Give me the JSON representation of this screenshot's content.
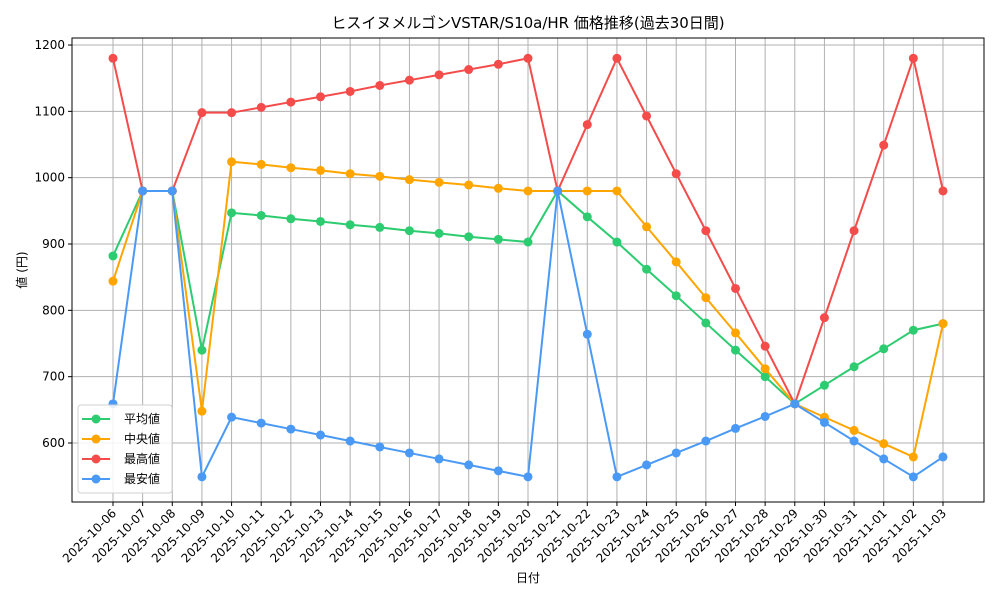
{
  "chart_data": {
    "type": "line",
    "title": "ヒスイヌメルゴンVSTAR/S10a/HR 価格推移(過去30日間)",
    "xlabel": "日付",
    "ylabel": "値 (円)",
    "ylim": [
      520,
      1210
    ],
    "yticks": [
      600,
      700,
      800,
      900,
      1000,
      1100,
      1200
    ],
    "grid": true,
    "legend_position": "lower left",
    "categories": [
      "2025-10-06",
      "2025-10-07",
      "2025-10-08",
      "2025-10-09",
      "2025-10-10",
      "2025-10-11",
      "2025-10-12",
      "2025-10-13",
      "2025-10-14",
      "2025-10-15",
      "2025-10-16",
      "2025-10-17",
      "2025-10-18",
      "2025-10-19",
      "2025-10-20",
      "2025-10-21",
      "2025-10-22",
      "2025-10-23",
      "2025-10-24",
      "2025-10-25",
      "2025-10-26",
      "2025-10-27",
      "2025-10-28",
      "2025-10-29",
      "2025-10-30",
      "2025-10-31",
      "2025-11-01",
      "2025-11-02",
      "2025-11-03"
    ],
    "series": [
      {
        "name": "平均値",
        "color": "#2ecc71",
        "values": [
          882,
          980,
          980,
          740,
          947,
          943,
          938,
          934,
          929,
          925,
          920,
          916,
          911,
          907,
          903,
          980,
          941,
          903,
          862,
          822,
          781,
          740,
          700,
          659,
          687,
          715,
          742,
          770,
          780
        ]
      },
      {
        "name": "中央値",
        "color": "#ffa500",
        "values": [
          844,
          980,
          980,
          648,
          1024,
          1020,
          1015,
          1011,
          1006,
          1002,
          997,
          993,
          989,
          984,
          980,
          980,
          980,
          980,
          926,
          873,
          819,
          766,
          712,
          659,
          639,
          619,
          599,
          579,
          780
        ]
      },
      {
        "name": "最高値",
        "color": "#f44b4b",
        "values": [
          1180,
          980,
          980,
          1098,
          1098,
          1106,
          1114,
          1122,
          1130,
          1139,
          1147,
          1155,
          1163,
          1171,
          1180,
          980,
          1080,
          1180,
          1093,
          1006,
          920,
          833,
          746,
          659,
          789,
          920,
          1049,
          1180,
          980
        ]
      },
      {
        "name": "最安値",
        "color": "#4a9af5",
        "values": [
          659,
          980,
          980,
          549,
          639,
          630,
          621,
          612,
          603,
          594,
          585,
          576,
          567,
          558,
          549,
          980,
          764,
          549,
          567,
          585,
          603,
          622,
          640,
          659,
          631,
          603,
          576,
          549,
          579
        ]
      }
    ]
  }
}
